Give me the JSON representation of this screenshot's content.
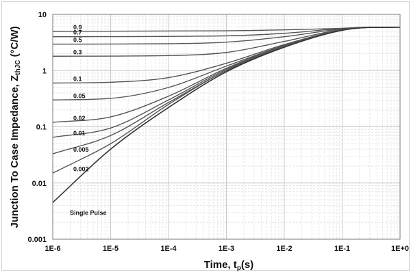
{
  "chart_data": {
    "type": "line",
    "x_scale": "log",
    "y_scale": "log",
    "xlim": [
      1e-06,
      1
    ],
    "ylim": [
      0.001,
      10
    ],
    "x_ticks": [
      "1E-6",
      "1E-5",
      "1E-4",
      "1E-3",
      "1E-2",
      "1E-1",
      "1E+0"
    ],
    "y_ticks": [
      "0.001",
      "0.01",
      "0.1",
      "1",
      "10"
    ],
    "xlabel_main": "Time, t",
    "xlabel_sub": "p",
    "xlabel_tail": "(s)",
    "ylabel_main": "Junction To Case Impedance, Z",
    "ylabel_sub": "thJC",
    "ylabel_tail": " (°C/W)",
    "grid": true,
    "series": [
      {
        "name": "0.9",
        "x": [
          1e-06,
          0.001,
          0.01,
          0.1,
          0.3,
          1
        ],
        "y": [
          5.0,
          5.1,
          5.3,
          5.65,
          5.9,
          5.9
        ]
      },
      {
        "name": "0.7",
        "x": [
          1e-06,
          0.001,
          0.01,
          0.1,
          0.3,
          1
        ],
        "y": [
          4.0,
          4.15,
          4.6,
          5.6,
          5.9,
          5.9
        ]
      },
      {
        "name": "0.5",
        "x": [
          1e-06,
          0.0001,
          0.001,
          0.01,
          0.1,
          0.3,
          1
        ],
        "y": [
          2.95,
          3.0,
          3.2,
          4.0,
          5.5,
          5.9,
          5.9
        ]
      },
      {
        "name": "0.3",
        "x": [
          1e-06,
          0.0001,
          0.001,
          0.01,
          0.1,
          0.3,
          1
        ],
        "y": [
          1.8,
          1.85,
          2.1,
          3.3,
          5.4,
          5.85,
          5.9
        ]
      },
      {
        "name": "0.1",
        "x": [
          1e-06,
          1e-05,
          0.0001,
          0.001,
          0.01,
          0.1,
          0.3,
          1
        ],
        "y": [
          0.6,
          0.62,
          0.75,
          1.35,
          2.9,
          5.3,
          5.85,
          5.9
        ]
      },
      {
        "name": "0.05",
        "x": [
          1e-06,
          1e-05,
          0.0001,
          0.001,
          0.01,
          0.1,
          0.3,
          1
        ],
        "y": [
          0.3,
          0.32,
          0.5,
          1.2,
          2.8,
          5.3,
          5.85,
          5.9
        ]
      },
      {
        "name": "0.02",
        "x": [
          1e-06,
          1e-05,
          0.0001,
          0.001,
          0.01,
          0.1,
          0.3,
          1
        ],
        "y": [
          0.12,
          0.15,
          0.35,
          1.1,
          2.75,
          5.25,
          5.85,
          5.9
        ]
      },
      {
        "name": "0.01",
        "x": [
          1e-06,
          1e-05,
          0.0001,
          0.001,
          0.01,
          0.1,
          0.3,
          1
        ],
        "y": [
          0.065,
          0.095,
          0.3,
          1.05,
          2.7,
          5.25,
          5.85,
          5.9
        ]
      },
      {
        "name": "0.005",
        "x": [
          1e-06,
          1e-05,
          0.0001,
          0.001,
          0.01,
          0.1,
          0.3,
          1
        ],
        "y": [
          0.033,
          0.07,
          0.27,
          1.0,
          2.7,
          5.25,
          5.85,
          5.9
        ]
      },
      {
        "name": "0.002",
        "x": [
          1e-06,
          1e-05,
          0.0001,
          0.001,
          0.01,
          0.1,
          0.3,
          1
        ],
        "y": [
          0.015,
          0.05,
          0.25,
          1.0,
          2.65,
          5.2,
          5.85,
          5.9
        ]
      },
      {
        "name": "Single Pulse",
        "x": [
          1e-06,
          1e-05,
          0.0001,
          0.001,
          0.01,
          0.1,
          0.3,
          1
        ],
        "y": [
          0.0045,
          0.04,
          0.22,
          0.95,
          2.6,
          5.2,
          5.85,
          5.9
        ]
      }
    ],
    "colors": {
      "curve": "#555555",
      "single_pulse": "#333333",
      "major_grid": "#c8c8c8",
      "minor_grid": "#e6e6e6",
      "axis": "#7a7a7a"
    }
  }
}
